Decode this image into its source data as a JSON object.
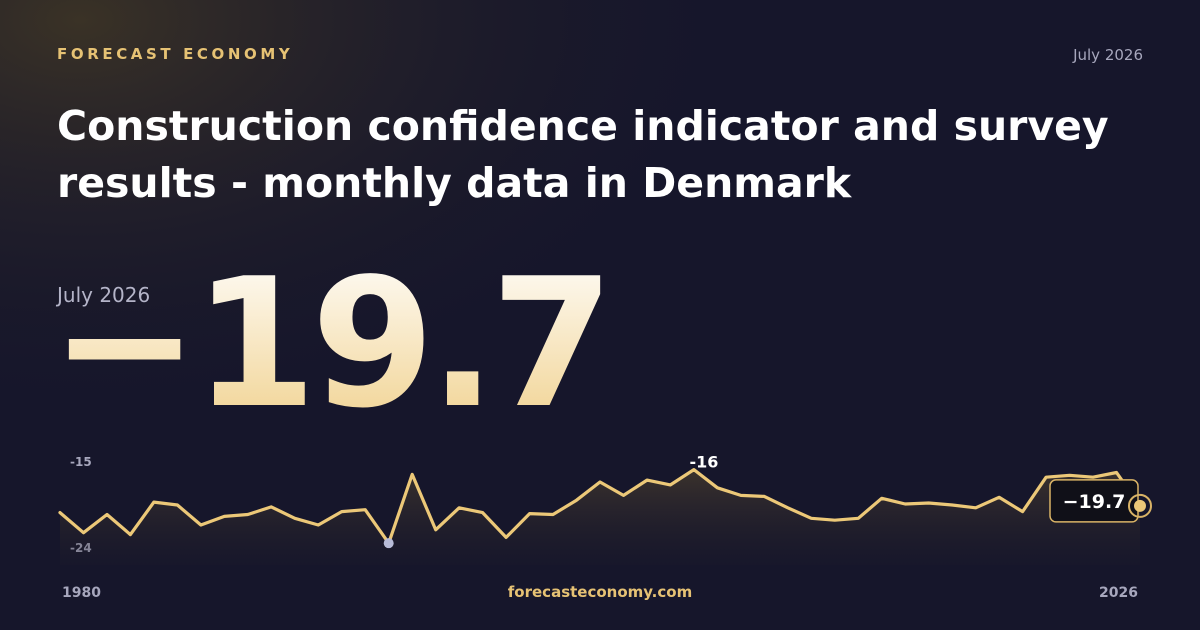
{
  "brand": "FORECAST ECONOMY",
  "date": "July 2026",
  "footer": "forecasteconomy.com",
  "chart_data": {
    "type": "line",
    "title": "Construction confidence indicator and survey results - monthly data in Denmark",
    "latest": {
      "date": "July 2026",
      "value": -19.7,
      "label": "−19.7"
    },
    "max_annotation": "-16",
    "x": [
      1980,
      1981,
      1982,
      1983,
      1984,
      1985,
      1986,
      1987,
      1988,
      1989,
      1990,
      1991,
      1992,
      1993,
      1994,
      1995,
      1996,
      1997,
      1998,
      1999,
      2000,
      2001,
      2002,
      2003,
      2004,
      2005,
      2006,
      2007,
      2008,
      2009,
      2010,
      2011,
      2012,
      2013,
      2014,
      2015,
      2016,
      2017,
      2018,
      2019,
      2020,
      2021,
      2022,
      2023,
      2024,
      2025,
      2026
    ],
    "series": [
      {
        "name": "Construction confidence indicator",
        "color": "#ecc878",
        "values": [
          -20.4,
          -22.5,
          -20.6,
          -22.7,
          -19.3,
          -19.6,
          -21.7,
          -20.8,
          -20.6,
          -19.8,
          -21.0,
          -21.7,
          -20.3,
          -20.1,
          -23.6,
          -16.4,
          -22.2,
          -19.9,
          -20.4,
          -23.0,
          -20.5,
          -20.6,
          -19.1,
          -17.2,
          -18.6,
          -17.0,
          -17.5,
          -15.9,
          -17.8,
          -18.6,
          -18.7,
          -19.9,
          -21.0,
          -21.2,
          -21.0,
          -18.9,
          -19.5,
          -19.4,
          -19.6,
          -19.9,
          -18.8,
          -20.3,
          -16.7,
          -16.5,
          -16.7,
          -16.2,
          -19.7
        ]
      }
    ],
    "xlim": [
      1980,
      2026
    ],
    "xticks": [
      1980,
      2026
    ],
    "ylim": [
      -24,
      -15
    ],
    "yticks": [
      -24,
      -15
    ]
  }
}
